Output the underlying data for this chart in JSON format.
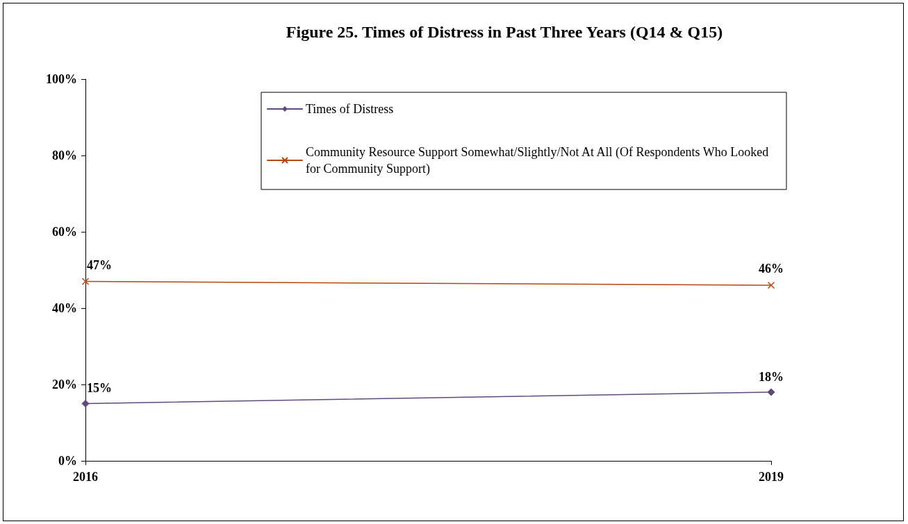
{
  "chart_data": {
    "type": "line",
    "title": "Figure 25. Times of Distress in Past Three Years (Q14 & Q15)",
    "x": [
      2016,
      2019
    ],
    "xlim": [
      2016,
      2019
    ],
    "xticks": [
      2016,
      2019
    ],
    "series": [
      {
        "name": "Times of Distress",
        "color": "#604a7b",
        "marker": "diamond",
        "values": [
          15,
          18
        ],
        "value_labels": [
          "15%",
          "18%"
        ]
      },
      {
        "name": "Community Resource Support Somewhat/Slightly/Not At All (Of Respondents Who Looked for Community Support)",
        "color": "#b5470f",
        "marker": "cross",
        "values": [
          47,
          46
        ],
        "value_labels": [
          "47%",
          "46%"
        ]
      }
    ],
    "ylim": [
      0,
      100
    ],
    "yticks": [
      {
        "value": 0,
        "label": "0%"
      },
      {
        "value": 20,
        "label": "20%"
      },
      {
        "value": 40,
        "label": "40%"
      },
      {
        "value": 60,
        "label": "60%"
      },
      {
        "value": 80,
        "label": "80%"
      },
      {
        "value": 100,
        "label": "100%"
      }
    ],
    "grid": false,
    "legend": "top right",
    "line_style": "solid"
  }
}
